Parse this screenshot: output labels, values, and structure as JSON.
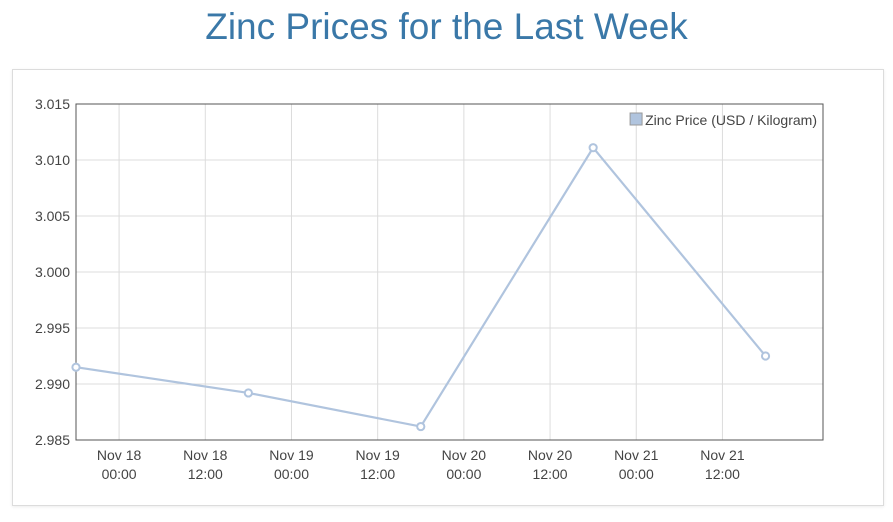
{
  "page": {
    "title": "Zinc Prices for the Last Week"
  },
  "chart_data": {
    "type": "line",
    "title": "Zinc Prices for the Last Week",
    "xlabel": "",
    "ylabel": "",
    "ylim": [
      2.985,
      3.015
    ],
    "yticks": [
      "3.015",
      "3.010",
      "3.005",
      "3.000",
      "2.995",
      "2.990",
      "2.985"
    ],
    "xticks": [
      {
        "line1": "Nov 18",
        "line2": "00:00"
      },
      {
        "line1": "Nov 18",
        "line2": "12:00"
      },
      {
        "line1": "Nov 19",
        "line2": "00:00"
      },
      {
        "line1": "Nov 19",
        "line2": "12:00"
      },
      {
        "line1": "Nov 20",
        "line2": "00:00"
      },
      {
        "line1": "Nov 20",
        "line2": "12:00"
      },
      {
        "line1": "Nov 21",
        "line2": "00:00"
      },
      {
        "line1": "Nov 21",
        "line2": "12:00"
      }
    ],
    "series": [
      {
        "name": "Zinc Price (USD / Kilogram)",
        "color": "#b0c4de",
        "points": [
          {
            "x": "Nov 17 18:00",
            "y": 2.9915
          },
          {
            "x": "Nov 18 18:00",
            "y": 2.9892
          },
          {
            "x": "Nov 19 18:00",
            "y": 2.9862
          },
          {
            "x": "Nov 20 18:00",
            "y": 3.0111
          },
          {
            "x": "Nov 21 18:00",
            "y": 2.9925
          }
        ]
      }
    ],
    "grid": true,
    "legend": "top-right"
  }
}
